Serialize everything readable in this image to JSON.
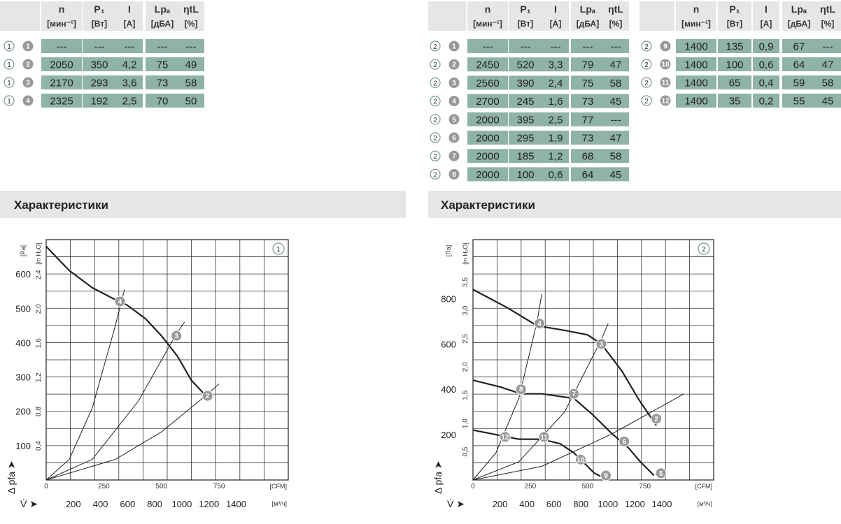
{
  "tables": {
    "headers": [
      {
        "sym": "n",
        "unit": "[мин⁻¹]"
      },
      {
        "sym": "P₁",
        "unit": "[Вт]"
      },
      {
        "sym": "I",
        "unit": "[А]"
      },
      {
        "sym": "Lpₐ",
        "unit": "[дБА]"
      },
      {
        "sym": "ηtL",
        "unit": "[%]"
      }
    ],
    "left_rows": [
      {
        "curve": "1",
        "pt": "1",
        "vals": [
          "---",
          "---",
          "---",
          "---",
          "---"
        ]
      },
      {
        "curve": "1",
        "pt": "2",
        "vals": [
          "2050",
          "350",
          "4,2",
          "75",
          "49"
        ]
      },
      {
        "curve": "1",
        "pt": "3",
        "vals": [
          "2170",
          "293",
          "3,6",
          "73",
          "58"
        ]
      },
      {
        "curve": "1",
        "pt": "4",
        "vals": [
          "2325",
          "192",
          "2,5",
          "70",
          "50"
        ]
      }
    ],
    "mid_rows": [
      {
        "curve": "2",
        "pt": "1",
        "vals": [
          "---",
          "---",
          "---",
          "---",
          "---"
        ]
      },
      {
        "curve": "2",
        "pt": "2",
        "vals": [
          "2450",
          "520",
          "3,3",
          "79",
          "47"
        ]
      },
      {
        "curve": "2",
        "pt": "3",
        "vals": [
          "2560",
          "390",
          "2,4",
          "75",
          "58"
        ]
      },
      {
        "curve": "2",
        "pt": "4",
        "vals": [
          "2700",
          "245",
          "1,6",
          "73",
          "45"
        ]
      },
      {
        "curve": "2",
        "pt": "5",
        "vals": [
          "2000",
          "395",
          "2,5",
          "77",
          "---"
        ]
      },
      {
        "curve": "2",
        "pt": "6",
        "vals": [
          "2000",
          "295",
          "1,9",
          "73",
          "47"
        ]
      },
      {
        "curve": "2",
        "pt": "7",
        "vals": [
          "2000",
          "185",
          "1,2",
          "68",
          "58"
        ]
      },
      {
        "curve": "2",
        "pt": "8",
        "vals": [
          "2000",
          "100",
          "0,6",
          "64",
          "45"
        ]
      }
    ],
    "right_rows": [
      {
        "curve": "2",
        "pt": "9",
        "vals": [
          "1400",
          "135",
          "0,9",
          "67",
          "---"
        ]
      },
      {
        "curve": "2",
        "pt": "10",
        "vals": [
          "1400",
          "100",
          "0,6",
          "64",
          "47"
        ]
      },
      {
        "curve": "2",
        "pt": "11",
        "vals": [
          "1400",
          "65",
          "0,4",
          "59",
          "58"
        ]
      },
      {
        "curve": "2",
        "pt": "12",
        "vals": [
          "1400",
          "35",
          "0,2",
          "55",
          "45"
        ]
      }
    ]
  },
  "sections": {
    "left_title": "Характеристики",
    "right_title": "Характеристики"
  },
  "colors": {
    "cell_bg": "#8fb3a6",
    "section_bg": "#e6e6e6",
    "marker": "#999999",
    "curve": "#222222"
  },
  "chart_data": [
    {
      "type": "line",
      "badge": "1",
      "pa_ticks": [
        "100",
        "200",
        "300",
        "400",
        "500",
        "600"
      ],
      "pa_unit": "[Pa]",
      "inh2o_ticks": [
        "0,4",
        "0,8",
        "1,2",
        "1,6",
        "2,0",
        "2,4"
      ],
      "inh2o_unit": "[in H₂O]",
      "cfm_ticks": [
        "0",
        "250",
        "500",
        "750"
      ],
      "cfm_unit": "[CFM]",
      "m3h_ticks": [
        "200",
        "400",
        "600",
        "800",
        "1000",
        "1200",
        "1400"
      ],
      "m3h_unit": "[м³/ч]",
      "xlim_cfm": [
        0,
        1050
      ],
      "ylim_pa": [
        0,
        700
      ],
      "xlabel": "V̇ ➤",
      "ylabel": "Δ pfa ➤",
      "fan_curve": [
        [
          0,
          680
        ],
        [
          100,
          610
        ],
        [
          200,
          560
        ],
        [
          300,
          525
        ],
        [
          350,
          510
        ],
        [
          430,
          470
        ],
        [
          500,
          420
        ],
        [
          570,
          360
        ],
        [
          630,
          290
        ],
        [
          700,
          240
        ]
      ],
      "system_curves": [
        [
          [
            0,
            0
          ],
          [
            100,
            60
          ],
          [
            200,
            210
          ],
          [
            300,
            450
          ],
          [
            340,
            555
          ]
        ],
        [
          [
            0,
            0
          ],
          [
            200,
            60
          ],
          [
            400,
            230
          ],
          [
            560,
            420
          ],
          [
            600,
            460
          ]
        ],
        [
          [
            0,
            0
          ],
          [
            300,
            60
          ],
          [
            500,
            140
          ],
          [
            700,
            250
          ],
          [
            750,
            280
          ]
        ]
      ],
      "points": [
        {
          "label": "4",
          "x": 320,
          "y": 520
        },
        {
          "label": "3",
          "x": 565,
          "y": 420
        },
        {
          "label": "2",
          "x": 700,
          "y": 245
        }
      ]
    },
    {
      "type": "line",
      "badge": "2",
      "pa_ticks": [
        "200",
        "400",
        "600",
        "800"
      ],
      "pa_unit": "[Па]",
      "inh2o_ticks": [
        "0,5",
        "1,0",
        "1,5",
        "2,0",
        "2,5",
        "3,0",
        "3,5"
      ],
      "inh2o_unit": "[in H₂O]",
      "cfm_ticks": [
        "0",
        "250",
        "500",
        "750"
      ],
      "cfm_unit": "[CFM]",
      "m3h_ticks": [
        "200",
        "400",
        "600",
        "800",
        "1000",
        "1200",
        "1400"
      ],
      "m3h_unit": "[м³/ч]",
      "xlim_cfm": [
        0,
        1050
      ],
      "ylim_pa": [
        0,
        1060
      ],
      "xlabel": "V̇ ➤",
      "ylabel": "Δ pfa ➤",
      "fan_curves": [
        [
          [
            0,
            840
          ],
          [
            150,
            760
          ],
          [
            280,
            680
          ],
          [
            400,
            660
          ],
          [
            500,
            640
          ],
          [
            560,
            600
          ],
          [
            650,
            480
          ],
          [
            720,
            360
          ],
          [
            800,
            240
          ]
        ],
        [
          [
            0,
            440
          ],
          [
            120,
            410
          ],
          [
            210,
            380
          ],
          [
            300,
            380
          ],
          [
            440,
            360
          ],
          [
            520,
            290
          ],
          [
            600,
            210
          ],
          [
            680,
            140
          ],
          [
            730,
            80
          ],
          [
            790,
            20
          ]
        ],
        [
          [
            0,
            220
          ],
          [
            100,
            200
          ],
          [
            200,
            180
          ],
          [
            300,
            180
          ],
          [
            380,
            160
          ],
          [
            440,
            120
          ],
          [
            480,
            80
          ],
          [
            530,
            30
          ],
          [
            570,
            10
          ]
        ]
      ],
      "system_curves": [
        [
          [
            0,
            0
          ],
          [
            100,
            120
          ],
          [
            200,
            360
          ],
          [
            280,
            700
          ],
          [
            300,
            820
          ]
        ],
        [
          [
            0,
            0
          ],
          [
            200,
            80
          ],
          [
            400,
            300
          ],
          [
            560,
            620
          ],
          [
            590,
            690
          ]
        ],
        [
          [
            0,
            0
          ],
          [
            300,
            60
          ],
          [
            600,
            200
          ],
          [
            850,
            340
          ],
          [
            920,
            380
          ]
        ]
      ],
      "points": [
        {
          "label": "4",
          "x": 290,
          "y": 690
        },
        {
          "label": "3",
          "x": 560,
          "y": 600
        },
        {
          "label": "2",
          "x": 800,
          "y": 270
        },
        {
          "label": "8",
          "x": 210,
          "y": 400
        },
        {
          "label": "7",
          "x": 440,
          "y": 380
        },
        {
          "label": "6",
          "x": 660,
          "y": 170
        },
        {
          "label": "5",
          "x": 820,
          "y": 30
        },
        {
          "label": "12",
          "x": 140,
          "y": 190
        },
        {
          "label": "11",
          "x": 310,
          "y": 190
        },
        {
          "label": "10",
          "x": 470,
          "y": 90
        },
        {
          "label": "9",
          "x": 580,
          "y": 20
        }
      ]
    }
  ]
}
